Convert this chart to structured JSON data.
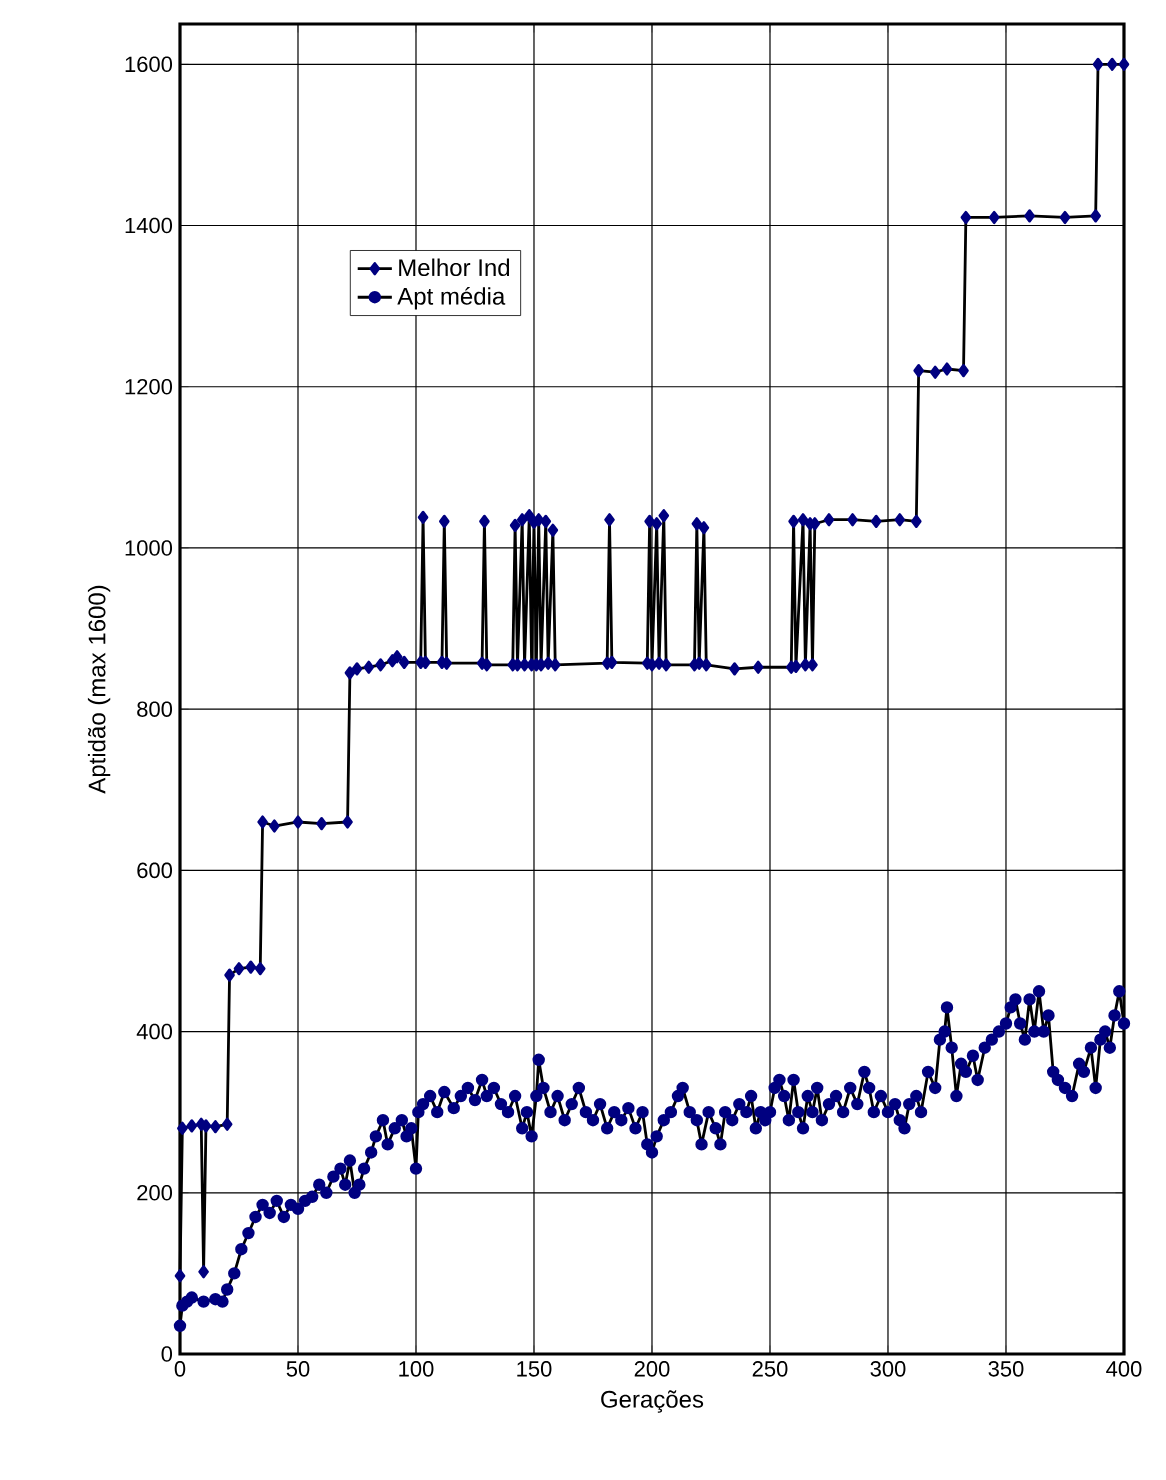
{
  "chart_data": {
    "type": "line",
    "xlabel": "Gerações",
    "ylabel": "Aptidão (max 1600)",
    "xlim": [
      0,
      400
    ],
    "ylim": [
      0,
      1650
    ],
    "xticks": [
      0,
      50,
      100,
      150,
      200,
      250,
      300,
      350,
      400
    ],
    "yticks": [
      0,
      200,
      400,
      600,
      800,
      1000,
      1200,
      1400,
      1600
    ],
    "grid": true,
    "legend": "top left",
    "series": [
      {
        "name": "Melhor Ind",
        "color": "#000080",
        "marker": "diamond",
        "x": [
          0,
          1,
          5,
          9,
          10,
          11,
          15,
          20,
          21,
          25,
          30,
          34,
          35,
          40,
          50,
          60,
          71,
          72,
          75,
          80,
          85,
          90,
          92,
          95,
          102,
          103,
          104,
          111,
          112,
          113,
          128,
          129,
          130,
          141,
          142,
          143,
          145,
          146,
          148,
          149,
          150,
          151,
          152,
          153,
          155,
          156,
          158,
          159,
          181,
          182,
          183,
          198,
          199,
          200,
          202,
          203,
          205,
          206,
          218,
          219,
          220,
          222,
          223,
          235,
          245,
          259,
          260,
          261,
          264,
          265,
          267,
          268,
          269,
          275,
          285,
          295,
          305,
          312,
          313,
          320,
          325,
          332,
          333,
          345,
          360,
          375,
          388,
          389,
          395,
          400
        ],
        "values": [
          97,
          280,
          283,
          285,
          102,
          283,
          282,
          285,
          470,
          478,
          480,
          478,
          660,
          655,
          660,
          658,
          660,
          845,
          850,
          852,
          855,
          860,
          865,
          858,
          858,
          1038,
          858,
          858,
          1033,
          857,
          857,
          1033,
          855,
          855,
          1028,
          855,
          1035,
          855,
          1040,
          855,
          1032,
          855,
          1035,
          855,
          1033,
          857,
          1022,
          855,
          857,
          1035,
          858,
          857,
          1033,
          855,
          1030,
          857,
          1040,
          855,
          855,
          1030,
          857,
          1025,
          855,
          850,
          852,
          852,
          1033,
          853,
          1035,
          855,
          1030,
          855,
          1030,
          1035,
          1035,
          1033,
          1035,
          1033,
          1220,
          1218,
          1222,
          1220,
          1410,
          1410,
          1412,
          1410,
          1412,
          1600,
          1600,
          1600
        ]
      },
      {
        "name": "Apt média",
        "color": "#000080",
        "marker": "circle",
        "x": [
          0,
          1,
          3,
          5,
          10,
          15,
          18,
          20,
          23,
          26,
          29,
          32,
          35,
          38,
          41,
          44,
          47,
          50,
          53,
          56,
          59,
          62,
          65,
          68,
          70,
          72,
          74,
          76,
          78,
          81,
          83,
          86,
          88,
          91,
          94,
          96,
          98,
          100,
          101,
          103,
          106,
          109,
          112,
          116,
          119,
          122,
          125,
          128,
          130,
          133,
          136,
          139,
          142,
          145,
          147,
          149,
          151,
          152,
          154,
          157,
          160,
          163,
          166,
          169,
          172,
          175,
          178,
          181,
          184,
          187,
          190,
          193,
          196,
          198,
          200,
          202,
          205,
          208,
          211,
          213,
          216,
          219,
          221,
          224,
          227,
          229,
          231,
          234,
          237,
          240,
          242,
          244,
          246,
          248,
          250,
          252,
          254,
          256,
          258,
          260,
          262,
          264,
          266,
          268,
          270,
          272,
          275,
          278,
          281,
          284,
          287,
          290,
          292,
          294,
          297,
          300,
          303,
          305,
          307,
          309,
          312,
          314,
          317,
          320,
          322,
          324,
          325,
          327,
          329,
          331,
          333,
          336,
          338,
          341,
          344,
          347,
          350,
          352,
          354,
          356,
          358,
          360,
          362,
          364,
          366,
          368,
          370,
          372,
          375,
          378,
          381,
          383,
          386,
          388,
          390,
          392,
          394,
          396,
          398,
          400
        ],
        "values": [
          35,
          60,
          65,
          70,
          65,
          68,
          65,
          80,
          100,
          130,
          150,
          170,
          185,
          175,
          190,
          170,
          185,
          180,
          190,
          195,
          210,
          200,
          220,
          230,
          210,
          240,
          200,
          210,
          230,
          250,
          270,
          290,
          260,
          280,
          290,
          270,
          280,
          230,
          300,
          310,
          320,
          300,
          325,
          305,
          320,
          330,
          315,
          340,
          320,
          330,
          310,
          300,
          320,
          280,
          300,
          270,
          320,
          365,
          330,
          300,
          320,
          290,
          310,
          330,
          300,
          290,
          310,
          280,
          300,
          290,
          305,
          280,
          300,
          260,
          250,
          270,
          290,
          300,
          320,
          330,
          300,
          290,
          260,
          300,
          280,
          260,
          300,
          290,
          310,
          300,
          320,
          280,
          300,
          290,
          300,
          330,
          340,
          320,
          290,
          340,
          300,
          280,
          320,
          300,
          330,
          290,
          310,
          320,
          300,
          330,
          310,
          350,
          330,
          300,
          320,
          300,
          310,
          290,
          280,
          310,
          320,
          300,
          350,
          330,
          390,
          400,
          430,
          380,
          320,
          360,
          350,
          370,
          340,
          380,
          390,
          400,
          410,
          430,
          440,
          410,
          390,
          440,
          400,
          450,
          400,
          420,
          350,
          340,
          330,
          320,
          360,
          350,
          380,
          330,
          390,
          400,
          380,
          420,
          450,
          410
        ]
      }
    ]
  }
}
